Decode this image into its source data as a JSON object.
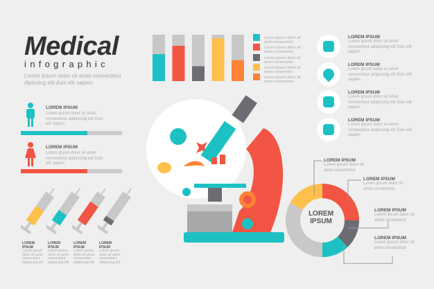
{
  "header": {
    "title": "Medical",
    "subtitle": "infographic",
    "description": "Lorem ipsum dolor sit amet consectetur dipiscing elit duis elit sapien"
  },
  "colors": {
    "teal": "#1ec1c3",
    "red": "#f25543",
    "dark": "#6b6d73",
    "yellow": "#fdc04b",
    "orange": "#fd8337",
    "grey": "#c8c8c8"
  },
  "people": [
    {
      "icon": "male-person-icon",
      "heading": "LOREM IPSUM",
      "text": "Lorem ipsum dolor sit amet consectetur adipiscing elit Duis elit sapien",
      "progress": 0.66,
      "color": "#1ec1c3"
    },
    {
      "icon": "female-person-icon",
      "heading": "LOREM IPSUM",
      "text": "Lorem ipsum dolor sit amet consectetur adipiscing elit Duis elit sapien",
      "progress": 0.66,
      "color": "#f25543"
    }
  ],
  "chart_data": [
    {
      "type": "bar",
      "stacked_fill": true,
      "ylim": [
        0,
        1
      ],
      "values": [
        0.58,
        0.76,
        0.32,
        0.92,
        0.45
      ],
      "colors": [
        "#1ec1c3",
        "#f25543",
        "#6b6d73",
        "#fdc04b",
        "#fd8337"
      ],
      "legend": [
        "Lorem ipsum dolor sit amet consectetur",
        "Lorem ipsum dolor sit amet consectetur",
        "Lorem ipsum dolor sit amet consectetur",
        "Lorem ipsum dolor sit amet consectetur",
        "Lorem ipsum dolor sit amet consectetur"
      ]
    },
    {
      "type": "pie",
      "donut": true,
      "center_label": "LOREM IPSUM",
      "values": [
        25,
        13,
        12,
        33,
        17
      ],
      "colors": [
        "#f25543",
        "#6b6d73",
        "#1ec1c3",
        "#c8c8c8",
        "#fdc04b"
      ]
    }
  ],
  "donut_labels": [
    {
      "heading": "LOREM IPSUM",
      "text": "Lorem ipsum dolor sit amet consectetur"
    },
    {
      "heading": "LOREM IPSUM",
      "text": "Lorem ipsum dolor sit amet consectetur"
    },
    {
      "heading": "LOREM IPSUM",
      "text": "Lorem ipsum dolor sit amet consectetur"
    },
    {
      "heading": "LOREM IPSUM",
      "text": "Lorem ipsum dolor sit amet consectetur"
    }
  ],
  "features": [
    {
      "icon": "face-mask-icon",
      "heading": "LOREM IPSUM",
      "text": "Lorem ipsum dolor sit amet consectetur adipiscing elit Duis elit sapien"
    },
    {
      "icon": "location-pin-icon",
      "heading": "LOREM IPSUM",
      "text": "Lorem ipsum dolor sit amet consectetur adipiscing elit Duis elit sapien"
    },
    {
      "icon": "sanitizer-bottle-icon",
      "heading": "LOREM IPSUM",
      "text": "Lorem ipsum dolor sit amet consectetur adipiscing elit Duis elit sapien"
    },
    {
      "icon": "social-distance-icon",
      "heading": "LOREM IPSUM",
      "text": "Lorem ipsum dolor sit amet consectetur adipiscing elit Duis elit sapien"
    }
  ],
  "syringes": [
    {
      "fill": 0.5,
      "color": "#fdc04b",
      "heading": "LOREM IPSUM",
      "text": "Lorem ipsum dolor sit amet consectetur adipiscing elit"
    },
    {
      "fill": 0.35,
      "color": "#1ec1c3",
      "heading": "LOREM IPSUM",
      "text": "Lorem ipsum dolor sit amet consectetur adipiscing elit"
    },
    {
      "fill": 0.65,
      "color": "#f25543",
      "heading": "LOREM IPSUM",
      "text": "Lorem ipsum dolor sit amet consectetur adipiscing elit"
    },
    {
      "fill": 0.15,
      "color": "#6b6d73",
      "heading": "LOREM IPSUM",
      "text": "Lorem ipsum dolor sit amet consectetur adipiscing elit"
    }
  ]
}
